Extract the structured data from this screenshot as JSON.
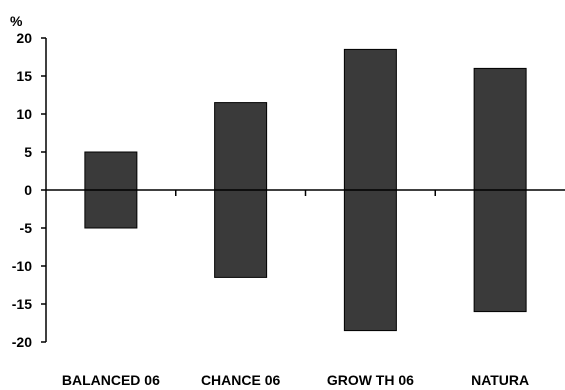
{
  "chart_data": {
    "type": "bar",
    "ylabel": "%",
    "categories": [
      "BALANCED 06",
      "CHANCE 06",
      "GROW TH 06",
      "NATURA"
    ],
    "series": [
      {
        "low": [
          -5,
          -11.5,
          -18.5,
          -16
        ],
        "high": [
          5,
          11.5,
          18.5,
          16
        ]
      }
    ],
    "ylim": [
      -20,
      20
    ],
    "yticks": [
      -20,
      -15,
      -10,
      -5,
      0,
      5,
      10,
      15,
      20
    ],
    "grid": false,
    "bar_color": "#3a3a3a"
  }
}
